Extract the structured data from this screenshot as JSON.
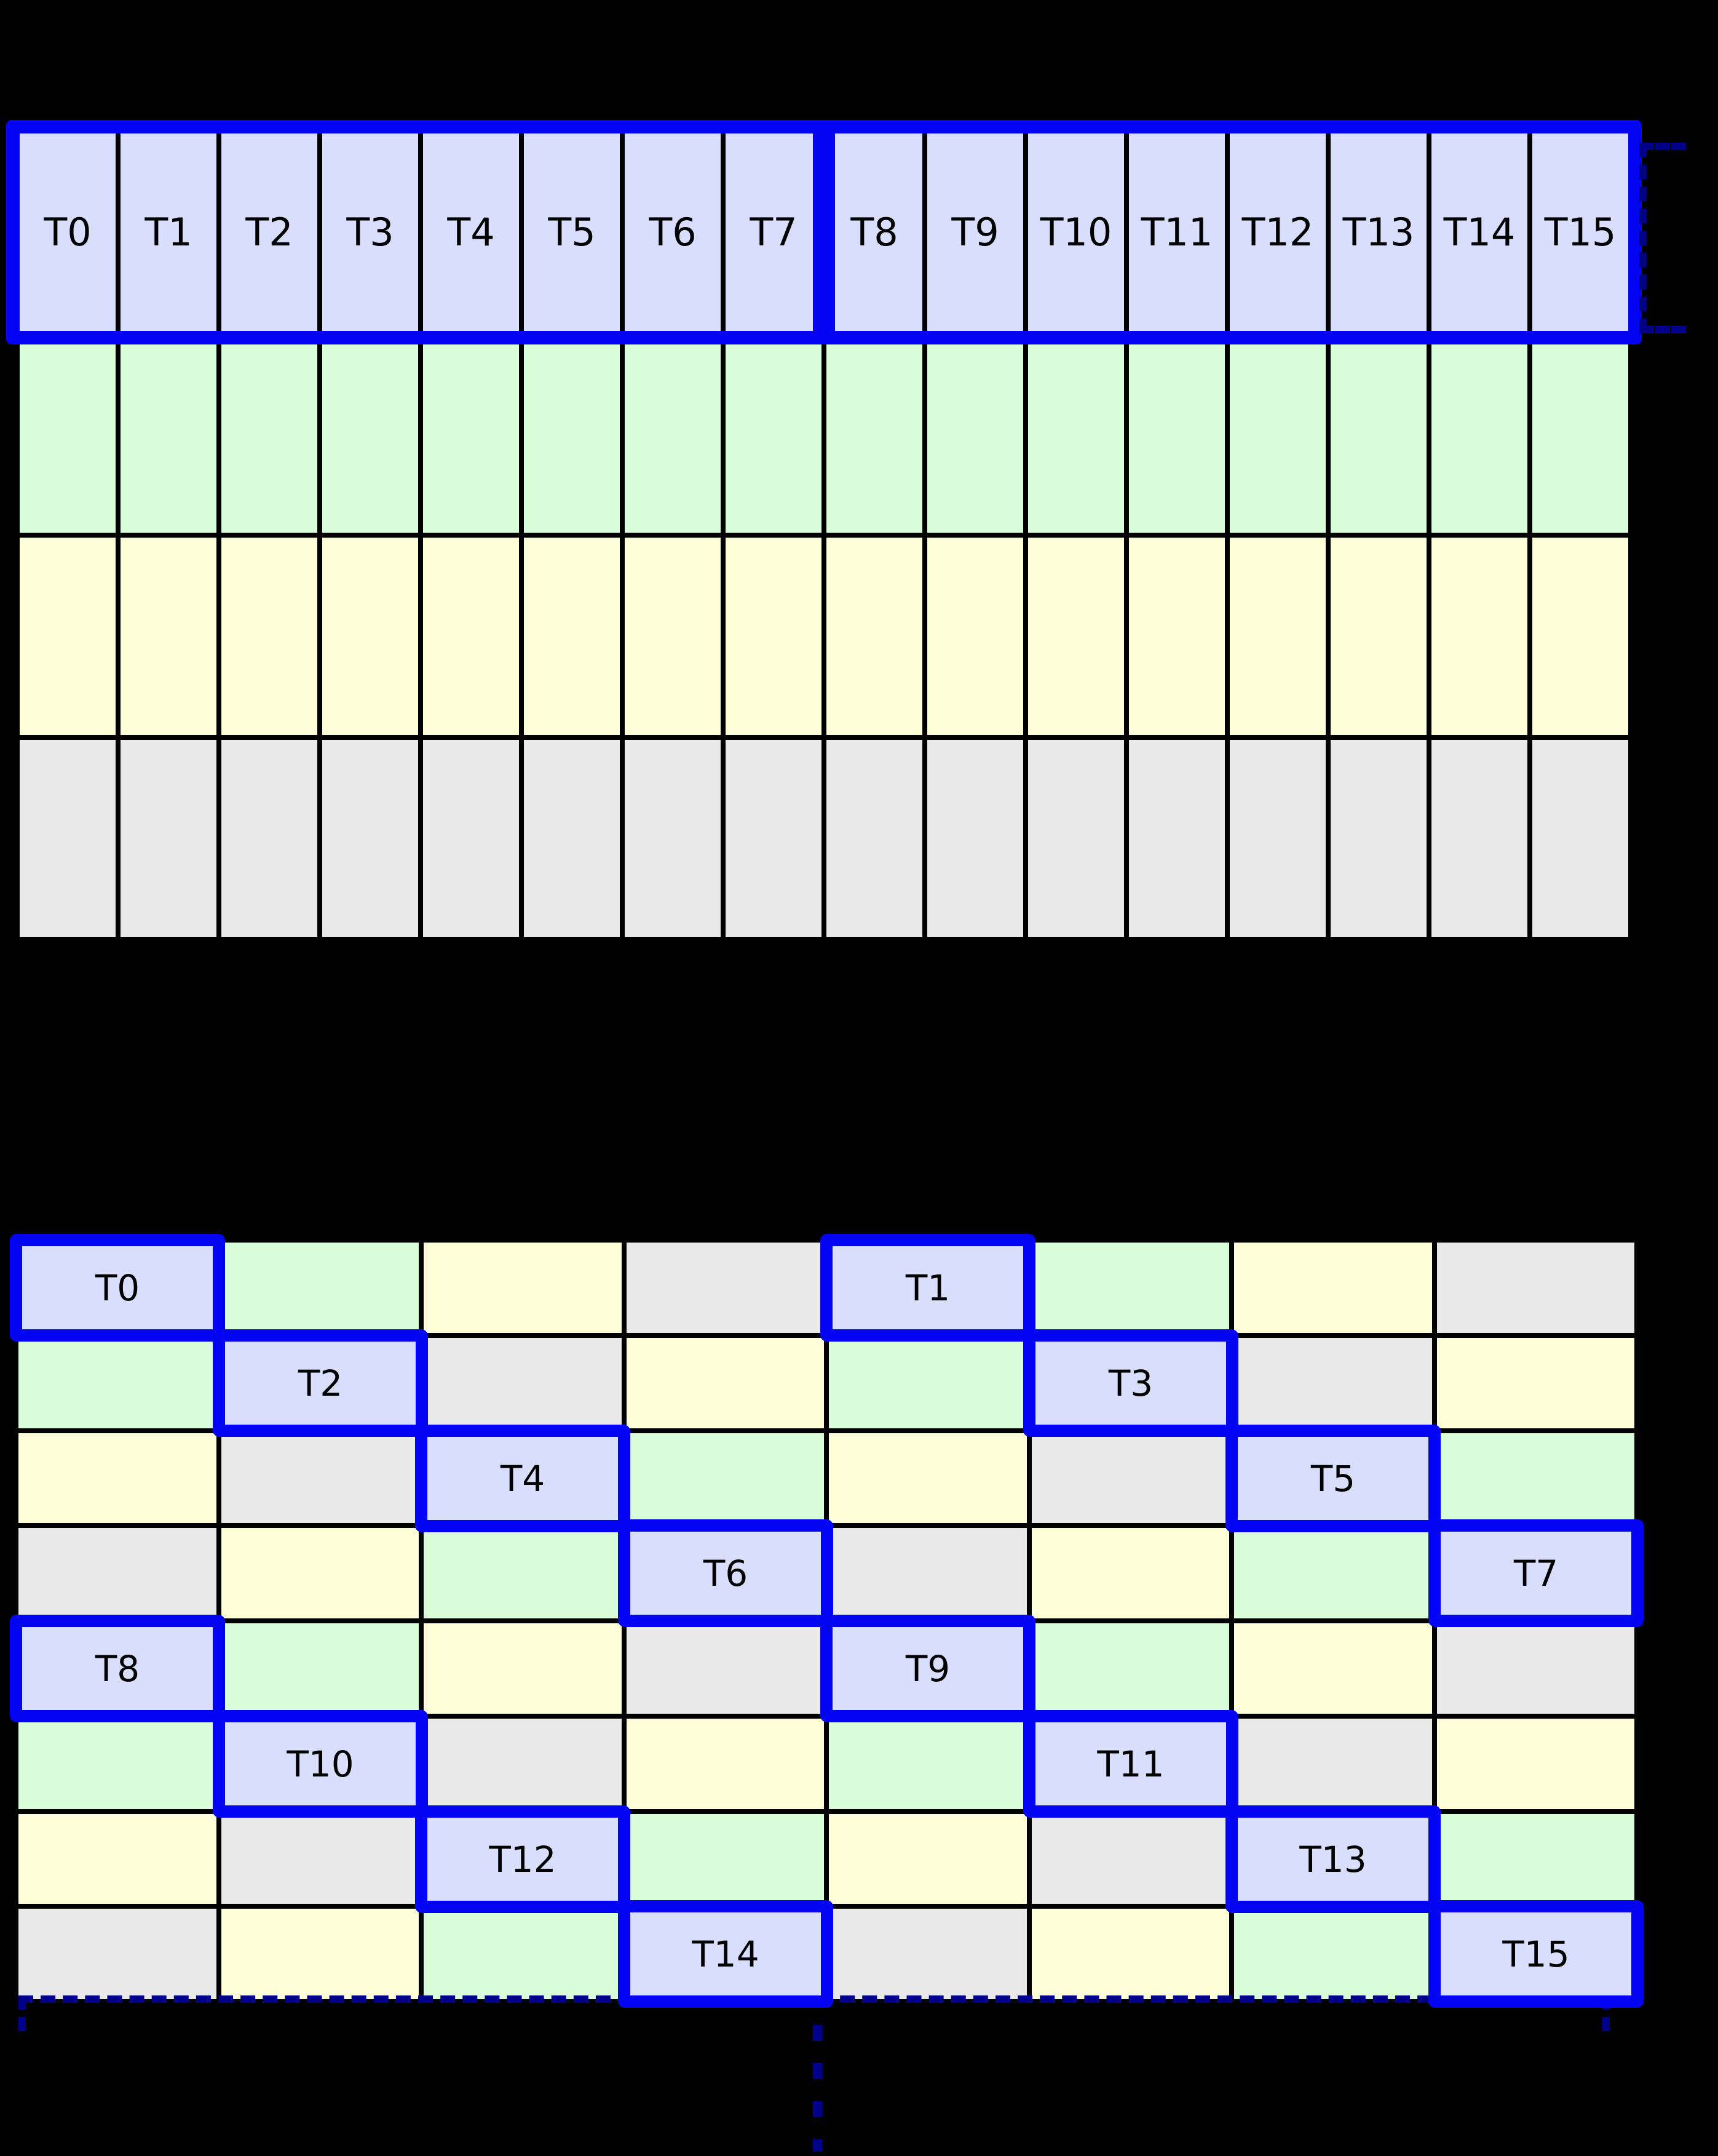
{
  "diagram": {
    "background": "#000000",
    "palette": {
      "lavender": "#d8defb",
      "green": "#d8fdd8",
      "yellow": "#fdfdd7",
      "gray": "#e9e9e9",
      "highlight_border": "#0404f5",
      "bracket": "#00008b",
      "gridline": "#000000"
    },
    "color_order": [
      "lavender",
      "green",
      "yellow",
      "gray"
    ],
    "top_table": {
      "columns": 16,
      "rows": 4,
      "header_labels": [
        "T0",
        "T1",
        "T2",
        "T3",
        "T4",
        "T5",
        "T6",
        "T7",
        "T8",
        "T9",
        "T10",
        "T11",
        "T12",
        "T13",
        "T14",
        "T15"
      ],
      "header_groups": [
        [
          0,
          7
        ],
        [
          8,
          15
        ]
      ],
      "body_row_colors": [
        "green",
        "yellow",
        "gray"
      ]
    },
    "bottom_table": {
      "rows": 8,
      "columns": 8,
      "color_matrix": [
        [
          0,
          1,
          2,
          3,
          0,
          1,
          2,
          3
        ],
        [
          1,
          0,
          3,
          2,
          1,
          0,
          3,
          2
        ],
        [
          2,
          3,
          0,
          1,
          2,
          3,
          0,
          1
        ],
        [
          3,
          2,
          1,
          0,
          3,
          2,
          1,
          0
        ],
        [
          0,
          1,
          2,
          3,
          0,
          1,
          2,
          3
        ],
        [
          1,
          0,
          3,
          2,
          1,
          0,
          3,
          2
        ],
        [
          2,
          3,
          0,
          1,
          2,
          3,
          0,
          1
        ],
        [
          3,
          2,
          1,
          0,
          3,
          2,
          1,
          0
        ]
      ],
      "highlight_cells": [
        {
          "label": "T0",
          "row": 0,
          "col": 0
        },
        {
          "label": "T1",
          "row": 0,
          "col": 4
        },
        {
          "label": "T2",
          "row": 1,
          "col": 1
        },
        {
          "label": "T3",
          "row": 1,
          "col": 5
        },
        {
          "label": "T4",
          "row": 2,
          "col": 2
        },
        {
          "label": "T5",
          "row": 2,
          "col": 6
        },
        {
          "label": "T6",
          "row": 3,
          "col": 3
        },
        {
          "label": "T7",
          "row": 3,
          "col": 7
        },
        {
          "label": "T8",
          "row": 4,
          "col": 0
        },
        {
          "label": "T9",
          "row": 4,
          "col": 4
        },
        {
          "label": "T10",
          "row": 5,
          "col": 1
        },
        {
          "label": "T11",
          "row": 5,
          "col": 5
        },
        {
          "label": "T12",
          "row": 6,
          "col": 2
        },
        {
          "label": "T13",
          "row": 6,
          "col": 6
        },
        {
          "label": "T14",
          "row": 7,
          "col": 3
        },
        {
          "label": "T15",
          "row": 7,
          "col": 7
        }
      ]
    }
  }
}
